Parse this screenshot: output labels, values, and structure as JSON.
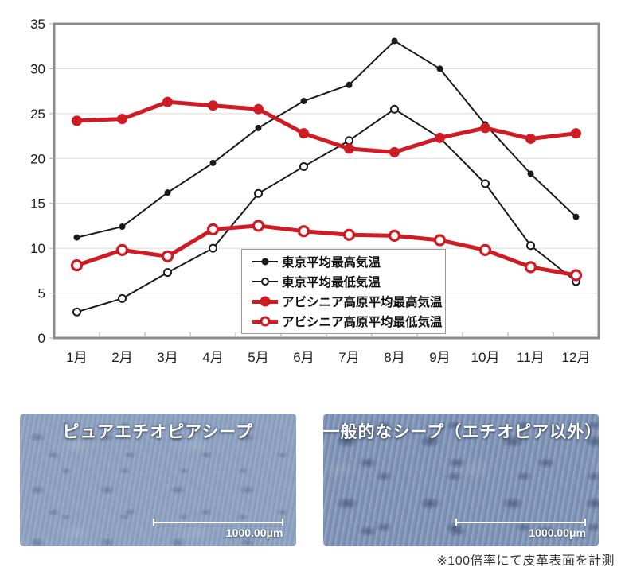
{
  "chart_data": {
    "type": "line",
    "title": "",
    "categories": [
      "1月",
      "2月",
      "3月",
      "4月",
      "5月",
      "6月",
      "7月",
      "8月",
      "9月",
      "10月",
      "11月",
      "12月"
    ],
    "xlabel": "",
    "ylabel": "",
    "ylim": [
      0,
      35
    ],
    "ytick_step": 5,
    "grid": true,
    "legend_position": "inside-bottom-center",
    "series": [
      {
        "name": "東京平均最高気温",
        "color": "#1a1a1a",
        "marker": "filled",
        "marker_radius": 4,
        "line_width": 2,
        "values": [
          11.2,
          12.4,
          16.2,
          19.5,
          23.4,
          26.4,
          28.2,
          33.1,
          30.0,
          23.8,
          18.3,
          13.5
        ]
      },
      {
        "name": "東京平均最低気温",
        "color": "#1a1a1a",
        "marker": "open",
        "marker_radius": 4.5,
        "line_width": 2,
        "values": [
          2.9,
          4.4,
          7.3,
          10.0,
          16.1,
          19.1,
          22.0,
          25.5,
          22.3,
          17.2,
          10.3,
          6.3
        ]
      },
      {
        "name": "アビシニア高原平均最高気温",
        "color": "#cf1b23",
        "marker": "filled",
        "marker_radius": 6.5,
        "line_width": 5,
        "values": [
          24.2,
          24.4,
          26.3,
          25.9,
          25.5,
          22.8,
          21.1,
          20.7,
          22.3,
          23.4,
          22.2,
          22.8
        ]
      },
      {
        "name": "アビシニア高原平均最低気温",
        "color": "#cf1b23",
        "marker": "open",
        "marker_radius": 6,
        "line_width": 5,
        "values": [
          8.1,
          9.8,
          9.1,
          12.1,
          12.5,
          11.9,
          11.5,
          11.4,
          10.9,
          9.8,
          7.9,
          7.0
        ]
      }
    ]
  },
  "colors": {
    "red": "#cf1b23",
    "black": "#1a1a1a",
    "grid": "#d9d9d9",
    "frame": "#8c8c8c"
  },
  "photos": {
    "left": {
      "title": "ピュアエチオピアシープ",
      "scale_label": "1000.00μm"
    },
    "right": {
      "title": "一般的なシープ（エチオピア以外）",
      "scale_label": "1000.00μm"
    }
  },
  "caption": "※100倍率にて皮革表面を計測"
}
